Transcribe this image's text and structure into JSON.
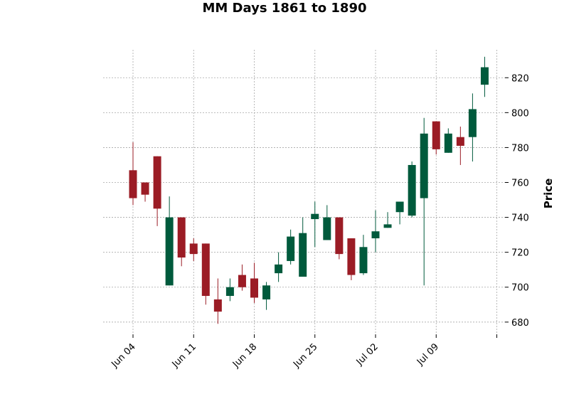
{
  "chart_data": {
    "type": "candlestick",
    "title": "MM Days 1861 to 1890",
    "ylabel": "Price",
    "xlabel": "",
    "grid": true,
    "ylim": [
      673,
      836
    ],
    "yticks": [
      680,
      700,
      720,
      740,
      760,
      780,
      800,
      820
    ],
    "xticks": [
      {
        "index": 0,
        "label": "Jun 04"
      },
      {
        "index": 5,
        "label": "Jun 11"
      },
      {
        "index": 10,
        "label": "Jun 18"
      },
      {
        "index": 15,
        "label": "Jun 25"
      },
      {
        "index": 20,
        "label": "Jul 02"
      },
      {
        "index": 25,
        "label": "Jul 09"
      },
      {
        "index": 30,
        "label": ""
      }
    ],
    "colors": {
      "up": "#005a3c",
      "down": "#9b1c25"
    },
    "candles": [
      {
        "date": "Jun 04",
        "open": 767,
        "high": 783,
        "low": 747,
        "close": 751
      },
      {
        "date": "Jun 05",
        "open": 760,
        "high": 760,
        "low": 749,
        "close": 753
      },
      {
        "date": "Jun 06",
        "open": 775,
        "high": 775,
        "low": 735,
        "close": 745
      },
      {
        "date": "Jun 07",
        "open": 701,
        "high": 752,
        "low": 701,
        "close": 740
      },
      {
        "date": "Jun 08",
        "open": 740,
        "high": 740,
        "low": 712,
        "close": 717
      },
      {
        "date": "Jun 11",
        "open": 725,
        "high": 728,
        "low": 715,
        "close": 719
      },
      {
        "date": "Jun 12",
        "open": 725,
        "high": 725,
        "low": 690,
        "close": 695
      },
      {
        "date": "Jun 13",
        "open": 693,
        "high": 705,
        "low": 679,
        "close": 686
      },
      {
        "date": "Jun 14",
        "open": 695,
        "high": 705,
        "low": 692,
        "close": 700
      },
      {
        "date": "Jun 15",
        "open": 707,
        "high": 713,
        "low": 698,
        "close": 700
      },
      {
        "date": "Jun 18",
        "open": 705,
        "high": 714,
        "low": 691,
        "close": 694
      },
      {
        "date": "Jun 19",
        "open": 693,
        "high": 703,
        "low": 687,
        "close": 701
      },
      {
        "date": "Jun 20",
        "open": 708,
        "high": 720,
        "low": 703,
        "close": 713
      },
      {
        "date": "Jun 21",
        "open": 715,
        "high": 733,
        "low": 713,
        "close": 729
      },
      {
        "date": "Jun 22",
        "open": 706,
        "high": 740,
        "low": 706,
        "close": 731
      },
      {
        "date": "Jun 25",
        "open": 739,
        "high": 749,
        "low": 723,
        "close": 742
      },
      {
        "date": "Jun 26",
        "open": 727,
        "high": 747,
        "low": 727,
        "close": 740
      },
      {
        "date": "Jun 27",
        "open": 740,
        "high": 740,
        "low": 716,
        "close": 719
      },
      {
        "date": "Jun 28",
        "open": 728,
        "high": 728,
        "low": 704,
        "close": 707
      },
      {
        "date": "Jun 29",
        "open": 708,
        "high": 730,
        "low": 707,
        "close": 723
      },
      {
        "date": "Jul 02",
        "open": 728,
        "high": 744,
        "low": 720,
        "close": 732
      },
      {
        "date": "Jul 03",
        "open": 734,
        "high": 743,
        "low": 734,
        "close": 736
      },
      {
        "date": "Jul 04",
        "open": 743,
        "high": 749,
        "low": 736,
        "close": 749
      },
      {
        "date": "Jul 05",
        "open": 741,
        "high": 772,
        "low": 740,
        "close": 770
      },
      {
        "date": "Jul 06",
        "open": 751,
        "high": 797,
        "low": 701,
        "close": 788
      },
      {
        "date": "Jul 09",
        "open": 795,
        "high": 795,
        "low": 776,
        "close": 779
      },
      {
        "date": "Jul 10",
        "open": 777,
        "high": 791,
        "low": 777,
        "close": 788
      },
      {
        "date": "Jul 11",
        "open": 786,
        "high": 792,
        "low": 770,
        "close": 781
      },
      {
        "date": "Jul 12",
        "open": 786,
        "high": 811,
        "low": 772,
        "close": 802
      },
      {
        "date": "Jul 13",
        "open": 816,
        "high": 832,
        "low": 809,
        "close": 826
      }
    ]
  }
}
